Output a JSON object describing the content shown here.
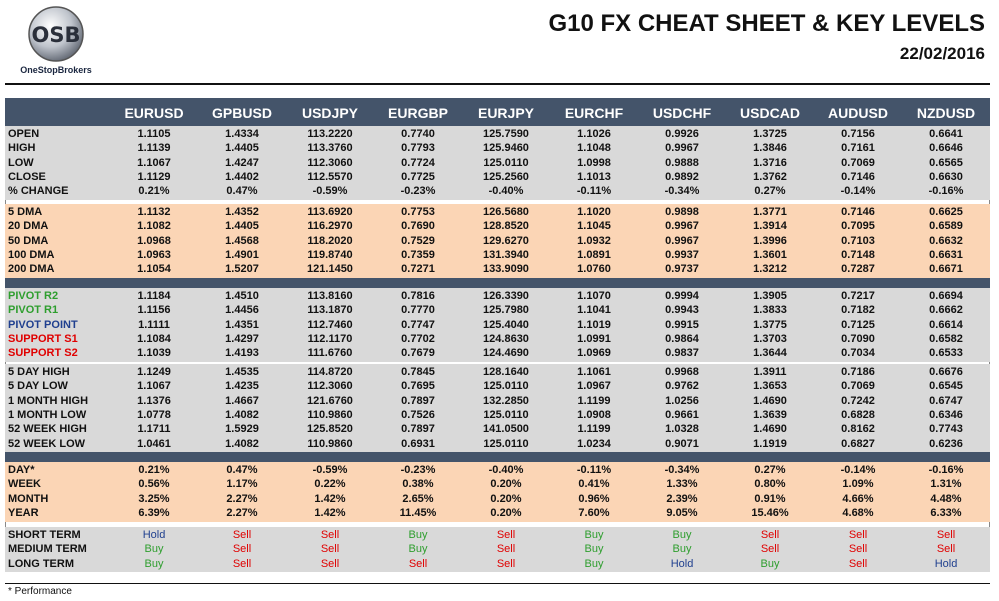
{
  "header": {
    "logo": "OSB",
    "brand": "OneStopBrokers",
    "title": "G10 FX CHEAT SHEET & KEY LEVELS",
    "date": "22/02/2016"
  },
  "table": {
    "columns": [
      "EURUSD",
      "GPBUSD",
      "USDJPY",
      "EURGBP",
      "EURJPY",
      "EURCHF",
      "USDCHF",
      "USDCAD",
      "AUDUSD",
      "NZDUSD"
    ],
    "sections": [
      {
        "rows": [
          {
            "label": "OPEN",
            "values": [
              "1.1105",
              "1.4334",
              "113.2220",
              "0.7740",
              "125.7590",
              "1.1026",
              "0.9926",
              "1.3725",
              "0.7156",
              "0.6641"
            ]
          },
          {
            "label": "HIGH",
            "values": [
              "1.1139",
              "1.4405",
              "113.3760",
              "0.7793",
              "125.9460",
              "1.1048",
              "0.9967",
              "1.3846",
              "0.7161",
              "0.6646"
            ]
          },
          {
            "label": "LOW",
            "values": [
              "1.1067",
              "1.4247",
              "112.3060",
              "0.7724",
              "125.0110",
              "1.0998",
              "0.9888",
              "1.3716",
              "0.7069",
              "0.6565"
            ]
          },
          {
            "label": "CLOSE",
            "values": [
              "1.1129",
              "1.4402",
              "112.5570",
              "0.7725",
              "125.2560",
              "1.1013",
              "0.9892",
              "1.3762",
              "0.7146",
              "0.6630"
            ]
          },
          {
            "label": "% CHANGE",
            "values": [
              "0.21%",
              "0.47%",
              "-0.59%",
              "-0.23%",
              "-0.40%",
              "-0.11%",
              "-0.34%",
              "0.27%",
              "-0.14%",
              "-0.16%"
            ]
          }
        ]
      },
      {
        "rows": [
          {
            "label": "5 DMA",
            "values": [
              "1.1132",
              "1.4352",
              "113.6920",
              "0.7753",
              "126.5680",
              "1.1020",
              "0.9898",
              "1.3771",
              "0.7146",
              "0.6625"
            ]
          },
          {
            "label": "20 DMA",
            "values": [
              "1.1082",
              "1.4405",
              "116.2970",
              "0.7690",
              "128.8520",
              "1.1045",
              "0.9967",
              "1.3914",
              "0.7095",
              "0.6589"
            ]
          },
          {
            "label": "50 DMA",
            "values": [
              "1.0968",
              "1.4568",
              "118.2020",
              "0.7529",
              "129.6270",
              "1.0932",
              "0.9967",
              "1.3996",
              "0.7103",
              "0.6632"
            ]
          },
          {
            "label": "100 DMA",
            "values": [
              "1.0963",
              "1.4901",
              "119.8740",
              "0.7359",
              "131.3940",
              "1.0891",
              "0.9937",
              "1.3601",
              "0.7148",
              "0.6631"
            ]
          },
          {
            "label": "200 DMA",
            "values": [
              "1.1054",
              "1.5207",
              "121.1450",
              "0.7271",
              "133.9090",
              "1.0760",
              "0.9737",
              "1.3212",
              "0.7287",
              "0.6671"
            ]
          }
        ]
      },
      {
        "rows": [
          {
            "label": "PIVOT R2",
            "color": "#2e9e2e",
            "values": [
              "1.1184",
              "1.4510",
              "113.8160",
              "0.7816",
              "126.3390",
              "1.1070",
              "0.9994",
              "1.3905",
              "0.7217",
              "0.6694"
            ]
          },
          {
            "label": "PIVOT R1",
            "color": "#2e9e2e",
            "values": [
              "1.1156",
              "1.4456",
              "113.1870",
              "0.7770",
              "125.7980",
              "1.1041",
              "0.9943",
              "1.3833",
              "0.7182",
              "0.6662"
            ]
          },
          {
            "label": "PIVOT POINT",
            "color": "#1f3f8f",
            "values": [
              "1.1111",
              "1.4351",
              "112.7460",
              "0.7747",
              "125.4040",
              "1.1019",
              "0.9915",
              "1.3775",
              "0.7125",
              "0.6614"
            ]
          },
          {
            "label": "SUPPORT S1",
            "color": "#e00000",
            "values": [
              "1.1084",
              "1.4297",
              "112.1170",
              "0.7702",
              "124.8630",
              "1.0991",
              "0.9864",
              "1.3703",
              "0.7090",
              "0.6582"
            ]
          },
          {
            "label": "SUPPORT S2",
            "color": "#e00000",
            "values": [
              "1.1039",
              "1.4193",
              "111.6760",
              "0.7679",
              "124.4690",
              "1.0969",
              "0.9837",
              "1.3644",
              "0.7034",
              "0.6533"
            ]
          }
        ]
      },
      {
        "rows": [
          {
            "label": "5 DAY HIGH",
            "values": [
              "1.1249",
              "1.4535",
              "114.8720",
              "0.7845",
              "128.1640",
              "1.1061",
              "0.9968",
              "1.3911",
              "0.7186",
              "0.6676"
            ]
          },
          {
            "label": "5 DAY LOW",
            "values": [
              "1.1067",
              "1.4235",
              "112.3060",
              "0.7695",
              "125.0110",
              "1.0967",
              "0.9762",
              "1.3653",
              "0.7069",
              "0.6545"
            ]
          },
          {
            "label": "1 MONTH HIGH",
            "values": [
              "1.1376",
              "1.4667",
              "121.6760",
              "0.7897",
              "132.2850",
              "1.1199",
              "1.0256",
              "1.4690",
              "0.7242",
              "0.6747"
            ]
          },
          {
            "label": "1 MONTH LOW",
            "values": [
              "1.0778",
              "1.4082",
              "110.9860",
              "0.7526",
              "125.0110",
              "1.0908",
              "0.9661",
              "1.3639",
              "0.6828",
              "0.6346"
            ]
          },
          {
            "label": "52 WEEK HIGH",
            "values": [
              "1.1711",
              "1.5929",
              "125.8520",
              "0.7897",
              "141.0500",
              "1.1199",
              "1.0328",
              "1.4690",
              "0.8162",
              "0.7743"
            ]
          },
          {
            "label": "52 WEEK LOW",
            "values": [
              "1.0461",
              "1.4082",
              "110.9860",
              "0.6931",
              "125.0110",
              "1.0234",
              "0.9071",
              "1.1919",
              "0.6827",
              "0.6236"
            ]
          }
        ]
      },
      {
        "rows": [
          {
            "label": "DAY*",
            "values": [
              "0.21%",
              "0.47%",
              "-0.59%",
              "-0.23%",
              "-0.40%",
              "-0.11%",
              "-0.34%",
              "0.27%",
              "-0.14%",
              "-0.16%"
            ]
          },
          {
            "label": "WEEK",
            "values": [
              "0.56%",
              "1.17%",
              "0.22%",
              "0.38%",
              "0.20%",
              "0.41%",
              "1.33%",
              "0.80%",
              "1.09%",
              "1.31%"
            ]
          },
          {
            "label": "MONTH",
            "values": [
              "3.25%",
              "2.27%",
              "1.42%",
              "2.65%",
              "0.20%",
              "0.96%",
              "2.39%",
              "0.91%",
              "4.66%",
              "4.48%"
            ]
          },
          {
            "label": "YEAR",
            "values": [
              "6.39%",
              "2.27%",
              "1.42%",
              "11.45%",
              "0.20%",
              "7.60%",
              "9.05%",
              "15.46%",
              "4.68%",
              "6.33%"
            ]
          }
        ]
      },
      {
        "rows": [
          {
            "label": "SHORT TERM",
            "values": [
              {
                "text": "Hold",
                "color": "#1f3f8f"
              },
              {
                "text": "Sell",
                "color": "#e00000"
              },
              {
                "text": "Sell",
                "color": "#e00000"
              },
              {
                "text": "Buy",
                "color": "#2e9e2e"
              },
              {
                "text": "Sell",
                "color": "#e00000"
              },
              {
                "text": "Buy",
                "color": "#2e9e2e"
              },
              {
                "text": "Buy",
                "color": "#2e9e2e"
              },
              {
                "text": "Sell",
                "color": "#e00000"
              },
              {
                "text": "Sell",
                "color": "#e00000"
              },
              {
                "text": "Sell",
                "color": "#e00000"
              }
            ]
          },
          {
            "label": "MEDIUM TERM",
            "values": [
              {
                "text": "Buy",
                "color": "#2e9e2e"
              },
              {
                "text": "Sell",
                "color": "#e00000"
              },
              {
                "text": "Sell",
                "color": "#e00000"
              },
              {
                "text": "Buy",
                "color": "#2e9e2e"
              },
              {
                "text": "Sell",
                "color": "#e00000"
              },
              {
                "text": "Buy",
                "color": "#2e9e2e"
              },
              {
                "text": "Buy",
                "color": "#2e9e2e"
              },
              {
                "text": "Sell",
                "color": "#e00000"
              },
              {
                "text": "Sell",
                "color": "#e00000"
              },
              {
                "text": "Sell",
                "color": "#e00000"
              }
            ]
          },
          {
            "label": "LONG TERM",
            "values": [
              {
                "text": "Buy",
                "color": "#2e9e2e"
              },
              {
                "text": "Sell",
                "color": "#e00000"
              },
              {
                "text": "Sell",
                "color": "#e00000"
              },
              {
                "text": "Sell",
                "color": "#e00000"
              },
              {
                "text": "Sell",
                "color": "#e00000"
              },
              {
                "text": "Buy",
                "color": "#2e9e2e"
              },
              {
                "text": "Hold",
                "color": "#1f3f8f"
              },
              {
                "text": "Buy",
                "color": "#2e9e2e"
              },
              {
                "text": "Sell",
                "color": "#e00000"
              },
              {
                "text": "Hold",
                "color": "#1f3f8f"
              }
            ]
          }
        ]
      }
    ]
  },
  "footnote": "* Performance"
}
